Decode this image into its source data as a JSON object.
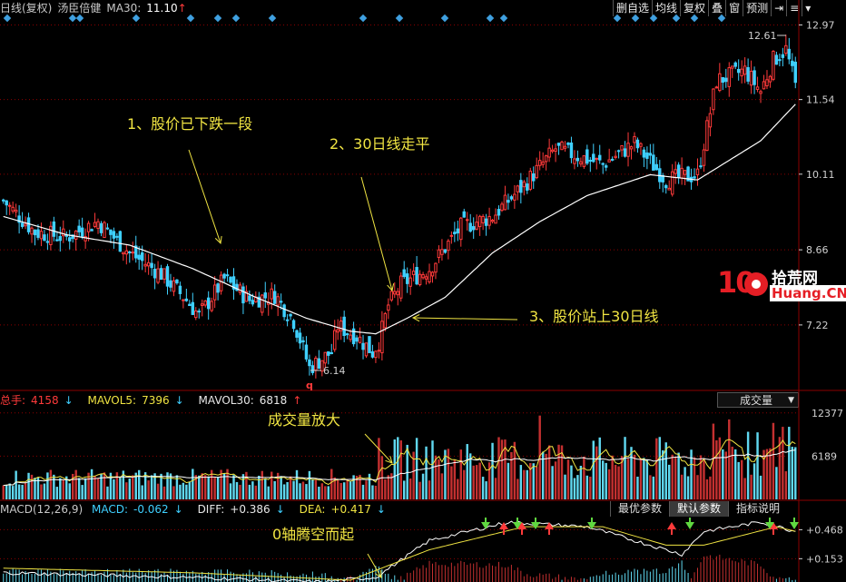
{
  "header": {
    "title": "日线(复权)",
    "stock": "汤臣倍健",
    "ma_label": "MA30:",
    "ma_value": "11.10",
    "ma_arrow": "↑",
    "buttons": [
      "删自选",
      "均线",
      "复权",
      "叠",
      "窗",
      "预测",
      "⇥",
      "≡",
      "▾"
    ]
  },
  "volume_header": {
    "total_label": "总手:",
    "total_value": "4158",
    "total_arrow": "↓",
    "mavol5_label": "MAVOL5:",
    "mavol5_value": "7396",
    "mavol5_arrow": "↓",
    "mavol30_label": "MAVOL30:",
    "mavol30_value": "6818",
    "mavol30_arrow": "↑",
    "selector": "成交量"
  },
  "macd_header": {
    "label": "MACD(12,26,9)",
    "macd_label": "MACD:",
    "macd_value": "-0.062",
    "macd_arrow": "↓",
    "diff_label": "DIFF:",
    "diff_value": "+0.386",
    "diff_arrow": "↓",
    "dea_label": "DEA:",
    "dea_value": "+0.417",
    "dea_arrow": "↓",
    "tabs": [
      "最优参数",
      "默认参数",
      "指标说明"
    ],
    "active_tab": 1
  },
  "logo": {
    "num": "10",
    "cn": "拾荒网",
    "en": "Huang.CN"
  },
  "colors": {
    "up": "#ff3a3a",
    "down": "#3fd0ff",
    "ma": "#ffffff",
    "accent": "#f0e442",
    "grid": "#8b0000"
  },
  "chart_data": {
    "type": "candlestick",
    "price_ticks": [
      12.97,
      11.54,
      10.11,
      8.66,
      7.22
    ],
    "price_range": [
      6.0,
      13.1
    ],
    "volume_ticks": [
      12377,
      6189
    ],
    "volume_range": [
      0,
      13000
    ],
    "macd_ticks": [
      0.468,
      0.153
    ],
    "macd_range": [
      -0.1,
      0.6
    ],
    "max_label": "12.61",
    "min_label": "6.14",
    "min_marker": "q",
    "annotations": [
      "1、股价已下跌一段",
      "2、30日线走平",
      "3、股价站上30日线",
      "成交量放大",
      "0轴腾空而起"
    ],
    "ma30_anchors": [
      [
        0,
        9.3
      ],
      [
        20,
        8.95
      ],
      [
        40,
        8.75
      ],
      [
        60,
        8.3
      ],
      [
        80,
        7.75
      ],
      [
        96,
        7.35
      ],
      [
        110,
        7.1
      ],
      [
        118,
        7.05
      ],
      [
        128,
        7.35
      ],
      [
        140,
        7.75
      ],
      [
        155,
        8.6
      ],
      [
        170,
        9.2
      ],
      [
        185,
        9.7
      ],
      [
        205,
        10.1
      ],
      [
        220,
        10.0
      ],
      [
        240,
        10.75
      ],
      [
        251,
        11.45
      ]
    ],
    "close_anchors": [
      [
        0,
        9.6
      ],
      [
        10,
        9.0
      ],
      [
        20,
        8.9
      ],
      [
        30,
        9.2
      ],
      [
        40,
        8.6
      ],
      [
        50,
        8.2
      ],
      [
        58,
        7.7
      ],
      [
        62,
        7.4
      ],
      [
        70,
        8.1
      ],
      [
        78,
        7.7
      ],
      [
        86,
        7.8
      ],
      [
        92,
        7.3
      ],
      [
        97,
        6.4
      ],
      [
        104,
        6.7
      ],
      [
        106,
        7.2
      ],
      [
        112,
        7.0
      ],
      [
        117,
        6.7
      ],
      [
        119,
        6.9
      ],
      [
        122,
        7.6
      ],
      [
        126,
        8.0
      ],
      [
        135,
        8.3
      ],
      [
        145,
        9.1
      ],
      [
        155,
        9.3
      ],
      [
        165,
        9.9
      ],
      [
        175,
        10.6
      ],
      [
        190,
        10.3
      ],
      [
        200,
        10.7
      ],
      [
        210,
        10.0
      ],
      [
        220,
        10.1
      ],
      [
        226,
        11.9
      ],
      [
        235,
        12.1
      ],
      [
        240,
        11.7
      ],
      [
        244,
        12.3
      ],
      [
        248,
        12.5
      ],
      [
        251,
        11.8
      ]
    ]
  }
}
